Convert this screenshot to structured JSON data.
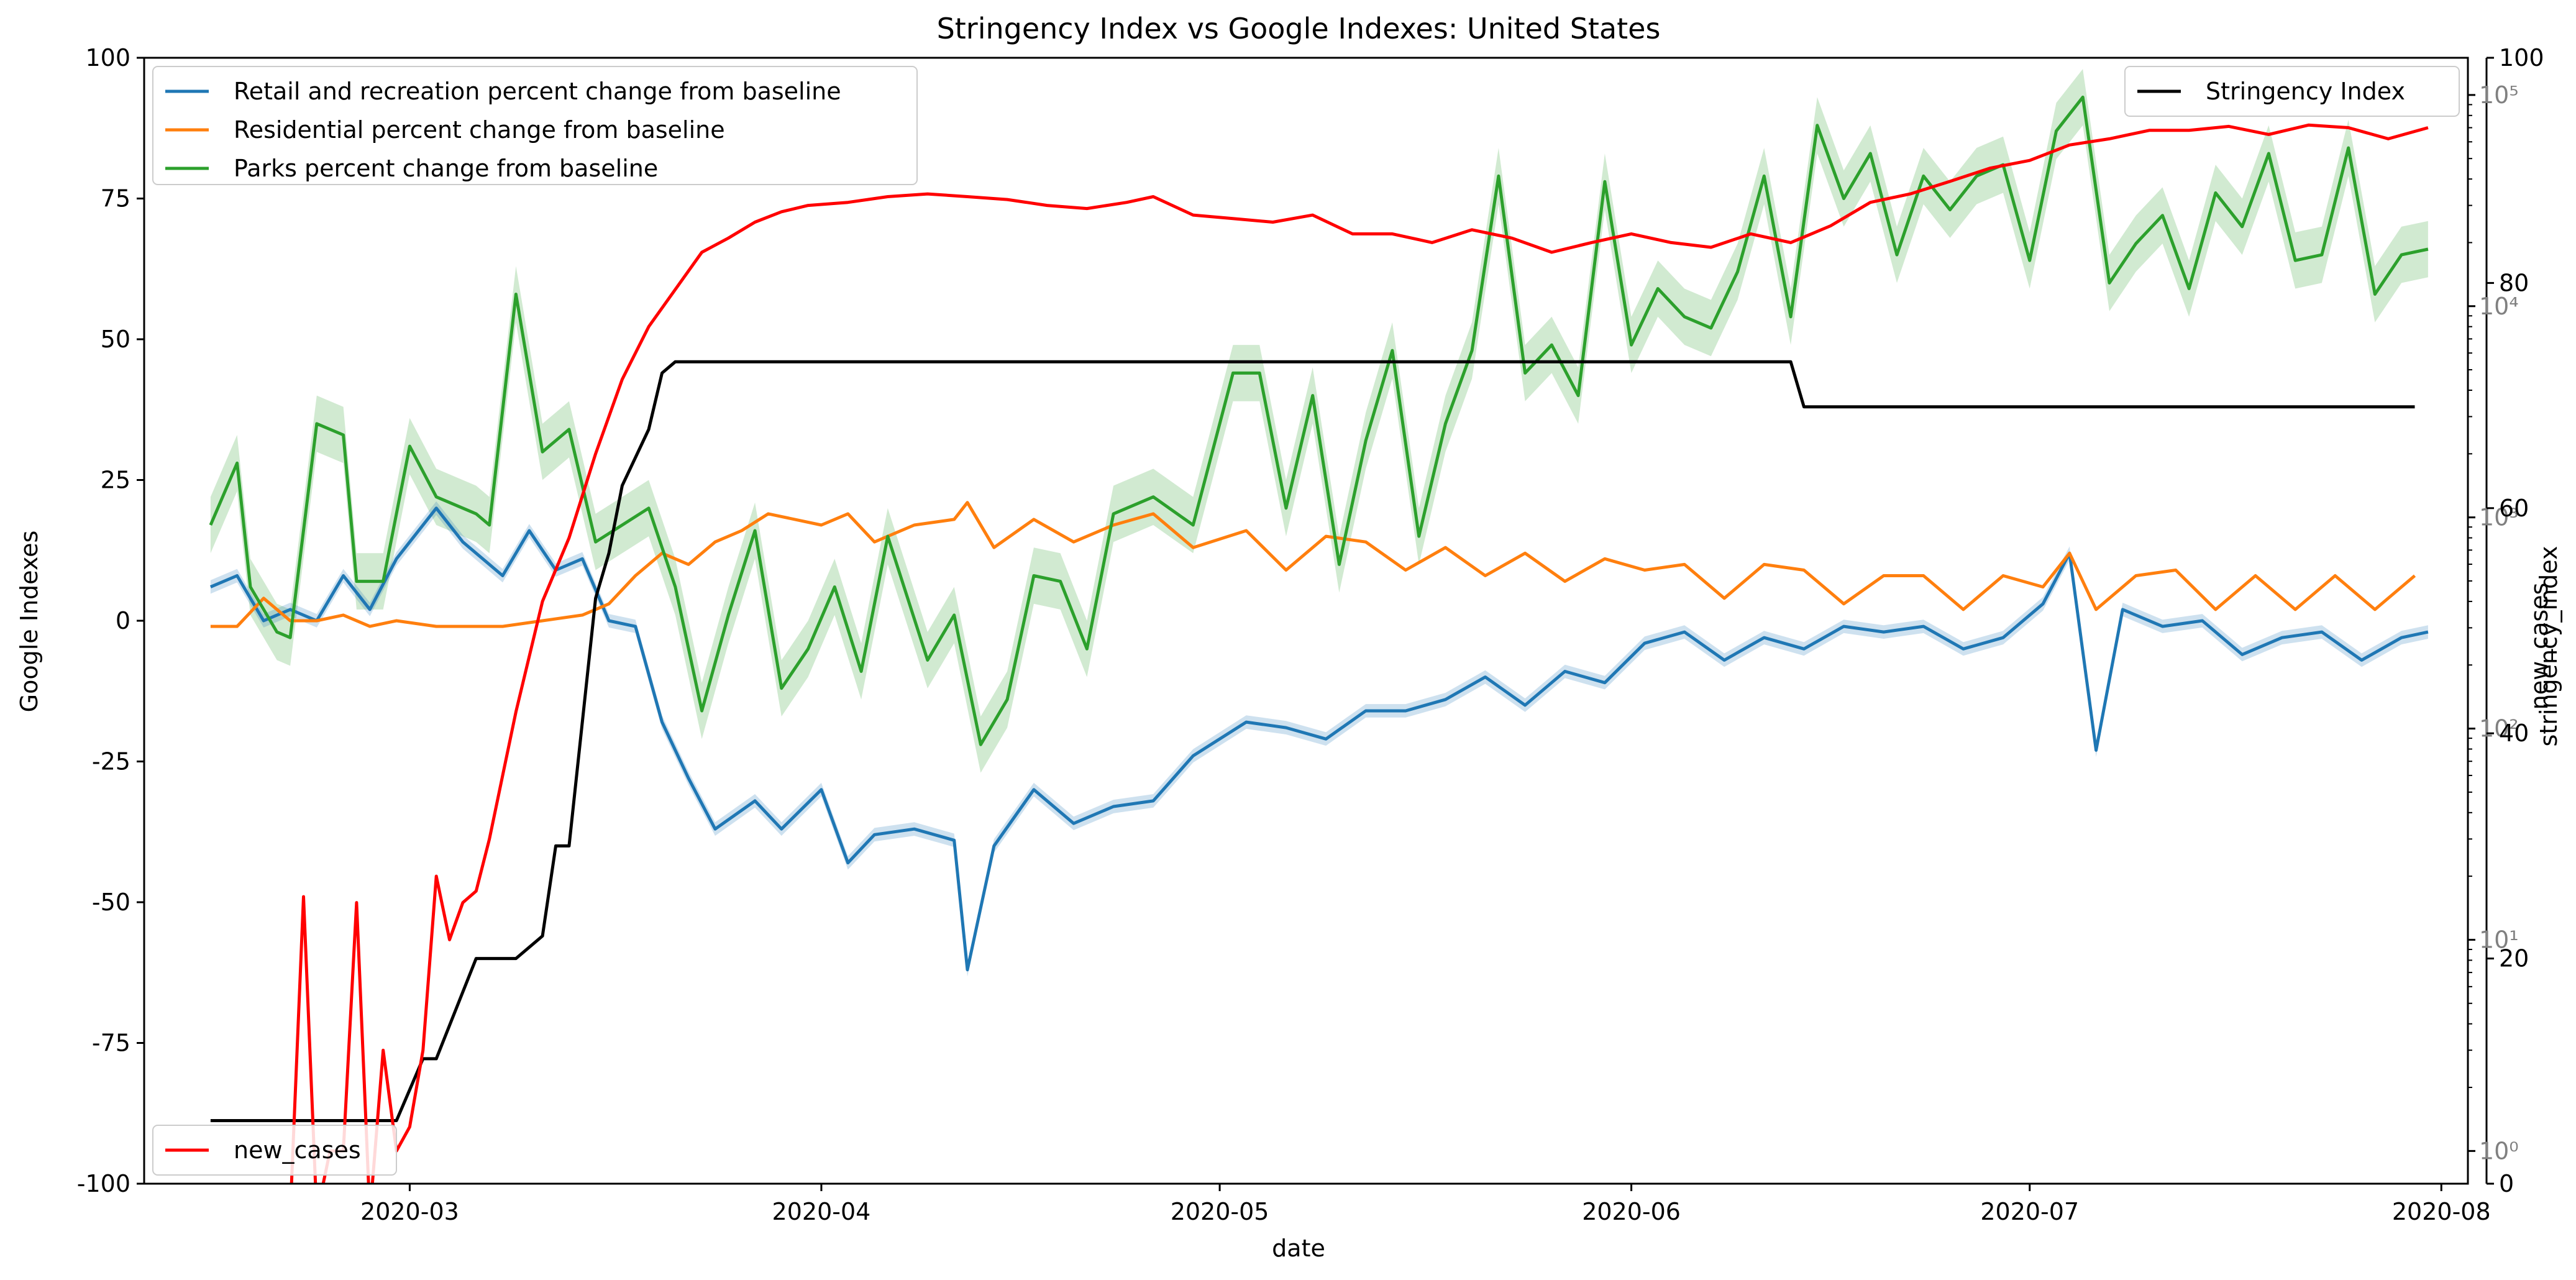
{
  "chart_data": {
    "type": "line",
    "title": "Stringency Index vs Google Indexes:  United States",
    "xlabel": "date",
    "ylabel_left": "Google Indexes",
    "ylabel_right_stringency": "stringency_index",
    "ylabel_right_cases": "new_cases",
    "x_range": [
      "2020-02-10",
      "2020-08-03"
    ],
    "x_ticks": [
      "2020-03-01",
      "2020-04-01",
      "2020-05-01",
      "2020-06-01",
      "2020-07-01",
      "2020-08-01"
    ],
    "x_tick_labels": [
      "2020-03",
      "2020-04",
      "2020-05",
      "2020-06",
      "2020-07",
      "2020-08"
    ],
    "ylim_left": [
      -100,
      100
    ],
    "ylim_stringency": [
      0,
      100
    ],
    "ylim_new_cases_log": [
      0.7,
      150000
    ],
    "y_ticks_left": [
      -100,
      -75,
      -50,
      -25,
      0,
      25,
      50,
      75,
      100
    ],
    "y_ticks_stringency": [
      0,
      20,
      40,
      60,
      80,
      100
    ],
    "y_ticks_cases": [
      1,
      10,
      100,
      1000,
      10000,
      100000
    ],
    "y_tick_labels_cases": [
      "10⁰",
      "10¹",
      "10²",
      "10³",
      "10⁴",
      "10⁵"
    ],
    "legend_google": [
      "Retail and recreation percent change from baseline",
      "Residential percent change from baseline",
      "Parks percent change from baseline"
    ],
    "legend_google_loc": "upper left",
    "legend_stringency": [
      "Stringency Index"
    ],
    "legend_stringency_loc": "upper right",
    "legend_cases": [
      "new_cases"
    ],
    "legend_cases_loc": "lower left",
    "colors": {
      "retail": "#1f77b4",
      "residential": "#ff7f0e",
      "parks": "#2ca02c",
      "stringency": "#000000",
      "new_cases": "#ff0000"
    },
    "series": [
      {
        "key": "retail",
        "axis": "left",
        "x": [
          "2020-02-15",
          "2020-02-17",
          "2020-02-19",
          "2020-02-21",
          "2020-02-23",
          "2020-02-25",
          "2020-02-27",
          "2020-02-29",
          "2020-03-03",
          "2020-03-05",
          "2020-03-08",
          "2020-03-10",
          "2020-03-12",
          "2020-03-14",
          "2020-03-16",
          "2020-03-18",
          "2020-03-20",
          "2020-03-22",
          "2020-03-24",
          "2020-03-27",
          "2020-03-29",
          "2020-04-01",
          "2020-04-03",
          "2020-04-05",
          "2020-04-08",
          "2020-04-11",
          "2020-04-12",
          "2020-04-14",
          "2020-04-17",
          "2020-04-20",
          "2020-04-23",
          "2020-04-26",
          "2020-04-29",
          "2020-05-03",
          "2020-05-06",
          "2020-05-09",
          "2020-05-12",
          "2020-05-15",
          "2020-05-18",
          "2020-05-21",
          "2020-05-24",
          "2020-05-27",
          "2020-05-30",
          "2020-06-02",
          "2020-06-05",
          "2020-06-08",
          "2020-06-11",
          "2020-06-14",
          "2020-06-17",
          "2020-06-20",
          "2020-06-23",
          "2020-06-26",
          "2020-06-29",
          "2020-07-02",
          "2020-07-04",
          "2020-07-06",
          "2020-07-08",
          "2020-07-11",
          "2020-07-14",
          "2020-07-17",
          "2020-07-20",
          "2020-07-23",
          "2020-07-26",
          "2020-07-29",
          "2020-07-31"
        ],
        "values": [
          6,
          8,
          0,
          2,
          0,
          8,
          2,
          11,
          20,
          14,
          8,
          16,
          9,
          11,
          0,
          -1,
          -18,
          -28,
          -37,
          -32,
          -37,
          -30,
          -43,
          -38,
          -37,
          -39,
          -62,
          -40,
          -30,
          -36,
          -33,
          -32,
          -24,
          -18,
          -19,
          -21,
          -16,
          -16,
          -14,
          -10,
          -15,
          -9,
          -11,
          -4,
          -2,
          -7,
          -3,
          -5,
          -1,
          -2,
          -1,
          -5,
          -3,
          3,
          12,
          -23,
          2,
          -1,
          0,
          -6,
          -3,
          -2,
          -7,
          -3,
          -2
        ]
      },
      {
        "key": "residential",
        "axis": "left",
        "x": [
          "2020-02-15",
          "2020-02-17",
          "2020-02-19",
          "2020-02-21",
          "2020-02-23",
          "2020-02-25",
          "2020-02-27",
          "2020-02-29",
          "2020-03-03",
          "2020-03-05",
          "2020-03-08",
          "2020-03-11",
          "2020-03-14",
          "2020-03-16",
          "2020-03-18",
          "2020-03-20",
          "2020-03-22",
          "2020-03-24",
          "2020-03-26",
          "2020-03-28",
          "2020-04-01",
          "2020-04-03",
          "2020-04-05",
          "2020-04-08",
          "2020-04-11",
          "2020-04-12",
          "2020-04-14",
          "2020-04-17",
          "2020-04-20",
          "2020-04-23",
          "2020-04-26",
          "2020-04-29",
          "2020-05-03",
          "2020-05-06",
          "2020-05-09",
          "2020-05-12",
          "2020-05-15",
          "2020-05-18",
          "2020-05-21",
          "2020-05-24",
          "2020-05-27",
          "2020-05-30",
          "2020-06-02",
          "2020-06-05",
          "2020-06-08",
          "2020-06-11",
          "2020-06-14",
          "2020-06-17",
          "2020-06-20",
          "2020-06-23",
          "2020-06-26",
          "2020-06-29",
          "2020-07-02",
          "2020-07-04",
          "2020-07-06",
          "2020-07-09",
          "2020-07-12",
          "2020-07-15",
          "2020-07-18",
          "2020-07-21",
          "2020-07-24",
          "2020-07-27",
          "2020-07-30"
        ],
        "values": [
          -1,
          -1,
          4,
          0,
          0,
          1,
          -1,
          0,
          -1,
          -1,
          -1,
          0,
          1,
          3,
          8,
          12,
          10,
          14,
          16,
          19,
          17,
          19,
          14,
          17,
          18,
          21,
          13,
          18,
          14,
          17,
          19,
          13,
          16,
          9,
          15,
          14,
          9,
          13,
          8,
          12,
          7,
          11,
          9,
          10,
          4,
          10,
          9,
          3,
          8,
          8,
          2,
          8,
          6,
          12,
          2,
          8,
          9,
          2,
          8,
          2,
          8,
          2,
          8
        ]
      },
      {
        "key": "parks",
        "axis": "left",
        "x": [
          "2020-02-15",
          "2020-02-17",
          "2020-02-18",
          "2020-02-20",
          "2020-02-21",
          "2020-02-23",
          "2020-02-25",
          "2020-02-26",
          "2020-02-28",
          "2020-03-01",
          "2020-03-03",
          "2020-03-06",
          "2020-03-07",
          "2020-03-09",
          "2020-03-11",
          "2020-03-13",
          "2020-03-15",
          "2020-03-17",
          "2020-03-19",
          "2020-03-21",
          "2020-03-23",
          "2020-03-25",
          "2020-03-27",
          "2020-03-29",
          "2020-03-31",
          "2020-04-02",
          "2020-04-04",
          "2020-04-06",
          "2020-04-09",
          "2020-04-11",
          "2020-04-13",
          "2020-04-15",
          "2020-04-17",
          "2020-04-19",
          "2020-04-21",
          "2020-04-23",
          "2020-04-26",
          "2020-04-29",
          "2020-05-02",
          "2020-05-04",
          "2020-05-06",
          "2020-05-08",
          "2020-05-10",
          "2020-05-12",
          "2020-05-14",
          "2020-05-16",
          "2020-05-18",
          "2020-05-20",
          "2020-05-22",
          "2020-05-24",
          "2020-05-26",
          "2020-05-28",
          "2020-05-30",
          "2020-06-01",
          "2020-06-03",
          "2020-06-05",
          "2020-06-07",
          "2020-06-09",
          "2020-06-11",
          "2020-06-13",
          "2020-06-15",
          "2020-06-17",
          "2020-06-19",
          "2020-06-21",
          "2020-06-23",
          "2020-06-25",
          "2020-06-27",
          "2020-06-29",
          "2020-07-01",
          "2020-07-03",
          "2020-07-05",
          "2020-07-07",
          "2020-07-09",
          "2020-07-11",
          "2020-07-13",
          "2020-07-15",
          "2020-07-17",
          "2020-07-19",
          "2020-07-21",
          "2020-07-23",
          "2020-07-25",
          "2020-07-27",
          "2020-07-29",
          "2020-07-31"
        ],
        "values": [
          17,
          28,
          6,
          -2,
          -3,
          35,
          33,
          7,
          7,
          31,
          22,
          19,
          17,
          58,
          30,
          34,
          14,
          17,
          20,
          6,
          -16,
          1,
          16,
          -12,
          -5,
          6,
          -9,
          15,
          -7,
          1,
          -22,
          -14,
          8,
          7,
          -5,
          19,
          22,
          17,
          44,
          44,
          20,
          40,
          10,
          32,
          48,
          15,
          35,
          48,
          79,
          44,
          49,
          40,
          78,
          49,
          59,
          54,
          52,
          62,
          79,
          54,
          88,
          75,
          83,
          65,
          79,
          73,
          79,
          81,
          64,
          87,
          93,
          60,
          67,
          72,
          59,
          76,
          70,
          83,
          64,
          65,
          84,
          58,
          65,
          66
        ]
      },
      {
        "key": "stringency",
        "axis": "right",
        "x": [
          "2020-02-15",
          "2020-02-29",
          "2020-03-02",
          "2020-03-03",
          "2020-03-06",
          "2020-03-09",
          "2020-03-11",
          "2020-03-12",
          "2020-03-13",
          "2020-03-15",
          "2020-03-16",
          "2020-03-17",
          "2020-03-19",
          "2020-03-20",
          "2020-03-21",
          "2020-03-22",
          "2020-06-13",
          "2020-06-14",
          "2020-06-30",
          "2020-07-30"
        ],
        "values": [
          5.6,
          5.6,
          11.1,
          11.1,
          20,
          20,
          22,
          30,
          30,
          52,
          56,
          62,
          67,
          72,
          73,
          73,
          73,
          69,
          69,
          69
        ]
      },
      {
        "key": "new_cases",
        "axis": "right_log",
        "x": [
          "2020-02-21",
          "2020-02-22",
          "2020-02-23",
          "2020-02-24",
          "2020-02-25",
          "2020-02-26",
          "2020-02-27",
          "2020-02-28",
          "2020-02-29",
          "2020-03-01",
          "2020-03-02",
          "2020-03-03",
          "2020-03-04",
          "2020-03-05",
          "2020-03-06",
          "2020-03-07",
          "2020-03-08",
          "2020-03-09",
          "2020-03-11",
          "2020-03-13",
          "2020-03-15",
          "2020-03-17",
          "2020-03-19",
          "2020-03-21",
          "2020-03-23",
          "2020-03-25",
          "2020-03-27",
          "2020-03-29",
          "2020-03-31",
          "2020-04-03",
          "2020-04-06",
          "2020-04-09",
          "2020-04-12",
          "2020-04-15",
          "2020-04-18",
          "2020-04-21",
          "2020-04-24",
          "2020-04-26",
          "2020-04-29",
          "2020-05-02",
          "2020-05-05",
          "2020-05-08",
          "2020-05-11",
          "2020-05-14",
          "2020-05-17",
          "2020-05-20",
          "2020-05-23",
          "2020-05-26",
          "2020-05-29",
          "2020-06-01",
          "2020-06-04",
          "2020-06-07",
          "2020-06-10",
          "2020-06-13",
          "2020-06-16",
          "2020-06-19",
          "2020-06-22",
          "2020-06-25",
          "2020-06-28",
          "2020-07-01",
          "2020-07-04",
          "2020-07-07",
          "2020-07-10",
          "2020-07-13",
          "2020-07-16",
          "2020-07-19",
          "2020-07-22",
          "2020-07-25",
          "2020-07-28",
          "2020-07-31"
        ],
        "values": [
          0.5,
          16,
          0.5,
          1,
          1,
          15,
          0.5,
          3,
          1,
          1.3,
          3,
          20,
          10,
          15,
          17,
          30,
          60,
          120,
          400,
          800,
          2000,
          4500,
          8000,
          12000,
          18000,
          21000,
          25000,
          28000,
          30000,
          31000,
          33000,
          34000,
          33000,
          32000,
          30000,
          29000,
          31000,
          33000,
          27000,
          26000,
          25000,
          27000,
          22000,
          22000,
          20000,
          23000,
          21000,
          18000,
          20000,
          22000,
          20000,
          19000,
          22000,
          20000,
          24000,
          31000,
          34000,
          39000,
          45000,
          49000,
          58000,
          62000,
          68000,
          68000,
          71000,
          65000,
          72000,
          70000,
          62000,
          70000
        ]
      }
    ],
    "confidence_bands": [
      {
        "key": "parks",
        "halfwidth": 5
      },
      {
        "key": "retail",
        "halfwidth": 1.2
      }
    ]
  }
}
